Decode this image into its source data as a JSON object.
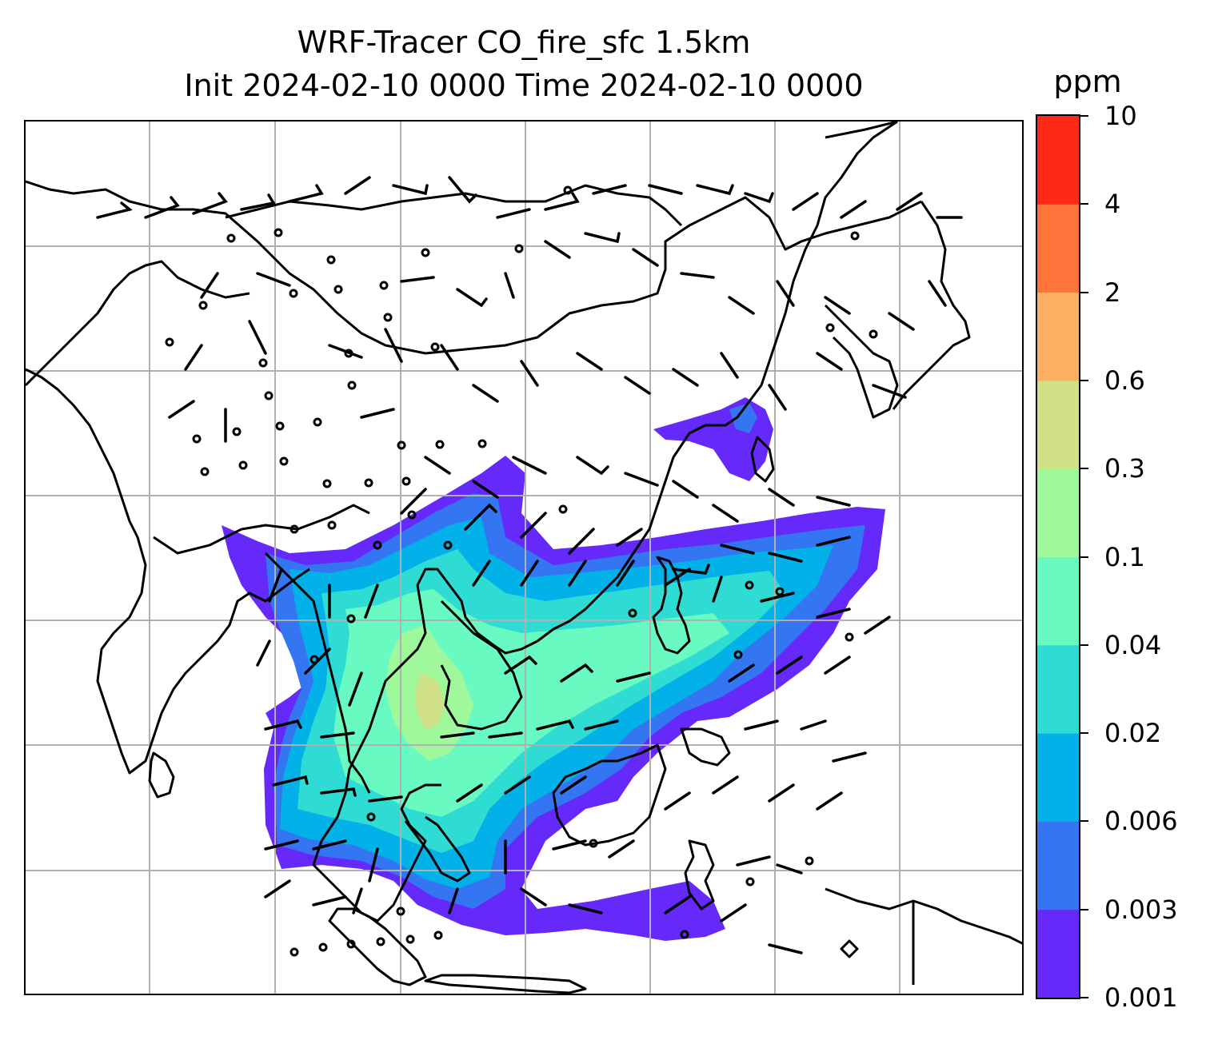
{
  "title": {
    "line1": "WRF-Tracer CO_fire_sfc 1.5km",
    "line2": "Init 2024-02-10 0000 Time 2024-02-10 0000"
  },
  "colorbar": {
    "unit": "ppm",
    "levels": [
      "0.001",
      "0.003",
      "0.006",
      "0.02",
      "0.04",
      "0.1",
      "0.3",
      "0.6",
      "2",
      "4",
      "10"
    ],
    "colors": [
      "#6529fa",
      "#3476f2",
      "#03b1e9",
      "#2fdcd3",
      "#69fac2",
      "#9ff99b",
      "#cfe086",
      "#fdb062",
      "#fe7439",
      "#fe2a16"
    ]
  },
  "map": {
    "gridlines": true,
    "coastline_color": "#000000",
    "gridline_color": "#b0b0b0",
    "wind_barbs": "black",
    "calm_marker": "circle"
  }
}
